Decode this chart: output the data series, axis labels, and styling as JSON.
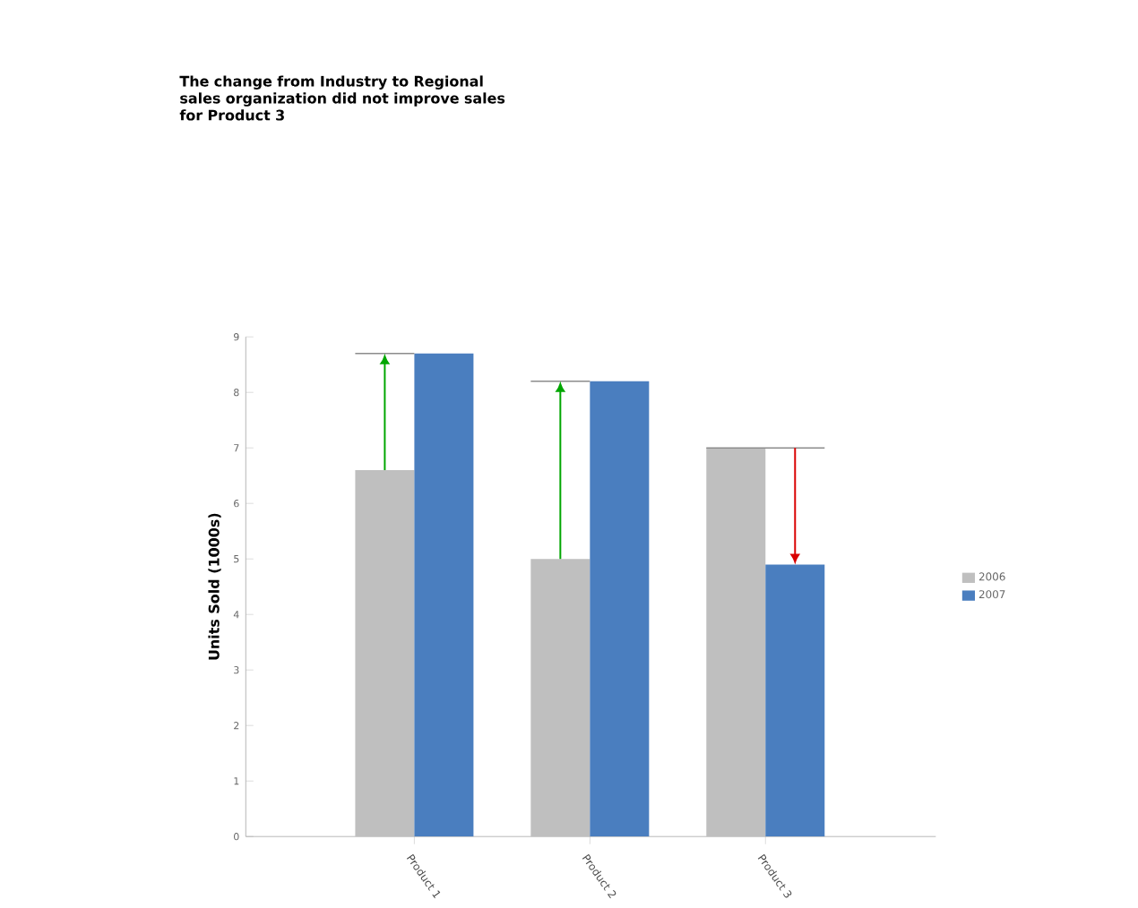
{
  "chart_data": {
    "type": "bar",
    "title": "The change from Industry to Regional sales organization did not improve sales for Product 3",
    "ylabel": "Units Sold (1000s)",
    "categories": [
      "Product 1",
      "Product 2",
      "Product 3"
    ],
    "series": [
      {
        "name": "2006",
        "color": "#bfbfbf",
        "values": [
          6.6,
          5.0,
          7.0
        ]
      },
      {
        "name": "2007",
        "color": "#4a7ebf",
        "values": [
          8.7,
          8.2,
          4.9
        ]
      }
    ],
    "ylim": [
      0,
      9
    ],
    "yticks": [
      0,
      1,
      2,
      3,
      4,
      5,
      6,
      7,
      8,
      9
    ],
    "grid": false,
    "legend": "right"
  }
}
